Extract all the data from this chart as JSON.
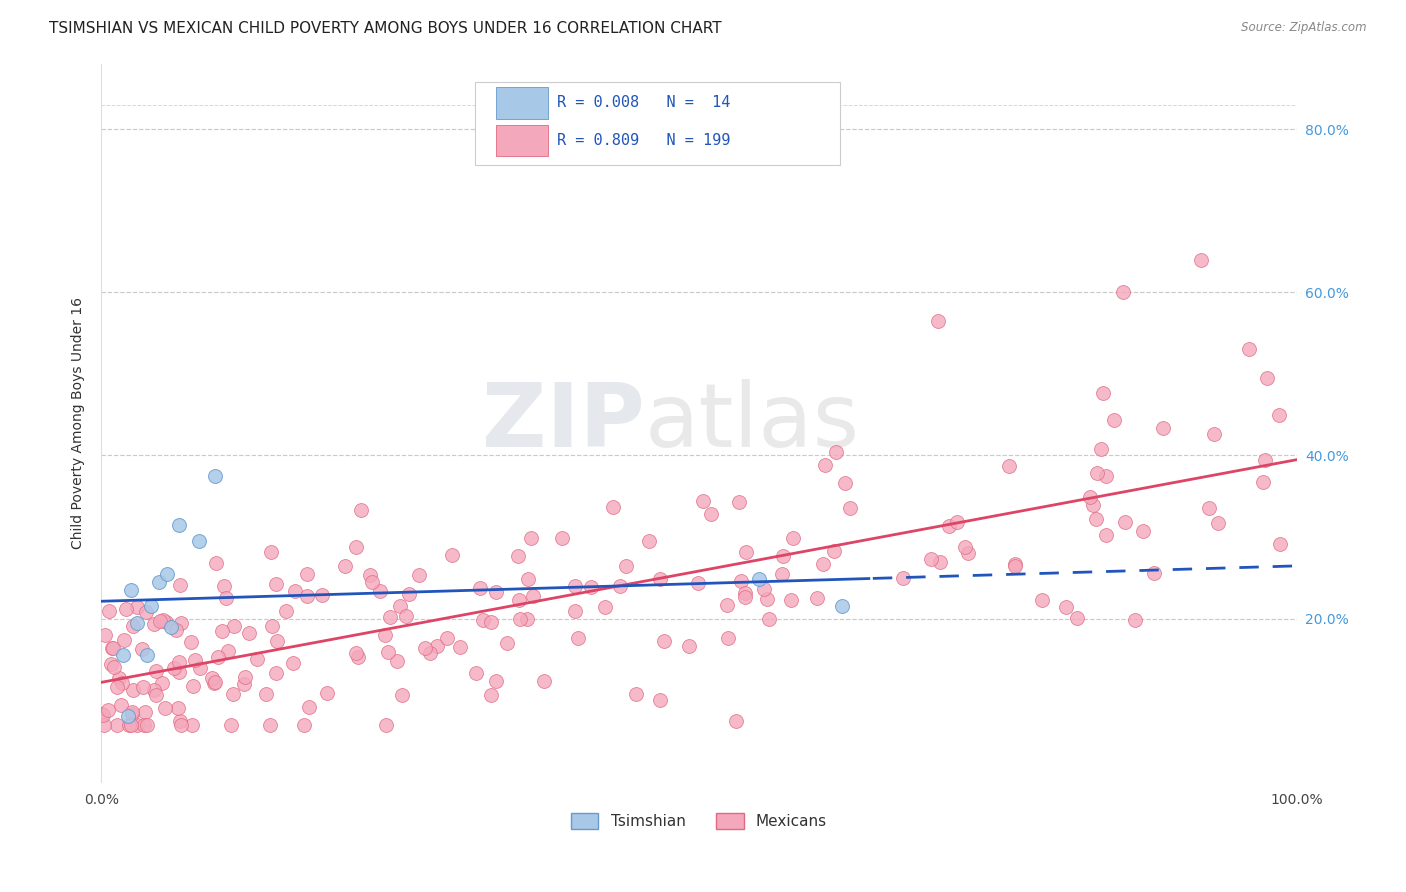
{
  "title": "TSIMSHIAN VS MEXICAN CHILD POVERTY AMONG BOYS UNDER 16 CORRELATION CHART",
  "source": "Source: ZipAtlas.com",
  "ylabel": "Child Poverty Among Boys Under 16",
  "xlim": [
    0.0,
    1.0
  ],
  "ylim": [
    0.0,
    0.88
  ],
  "ytick_positions": [
    0.2,
    0.4,
    0.6,
    0.8
  ],
  "ytick_labels": [
    "20.0%",
    "40.0%",
    "60.0%",
    "80.0%"
  ],
  "xtick_positions": [
    0.0,
    0.5,
    1.0
  ],
  "xtick_labels": [
    "0.0%",
    "",
    "100.0%"
  ],
  "grid_color": "#c8c8c8",
  "background_color": "#ffffff",
  "tsimshian_fill": "#a8c8e8",
  "tsimshian_edge": "#6699cc",
  "mexican_fill": "#f4a8bc",
  "mexican_edge": "#e06880",
  "tsimshian_line_color": "#2255bb",
  "mexican_line_color": "#dd4466",
  "legend_label_tsimshian": "Tsimshian",
  "legend_label_mexican": "Mexicans",
  "marker_size": 100,
  "title_fontsize": 11,
  "axis_label_fontsize": 10,
  "tick_fontsize": 10,
  "legend_fontsize": 11,
  "watermark_color": "#d0d8e0",
  "watermark_atlas_color": "#d0d0d0"
}
